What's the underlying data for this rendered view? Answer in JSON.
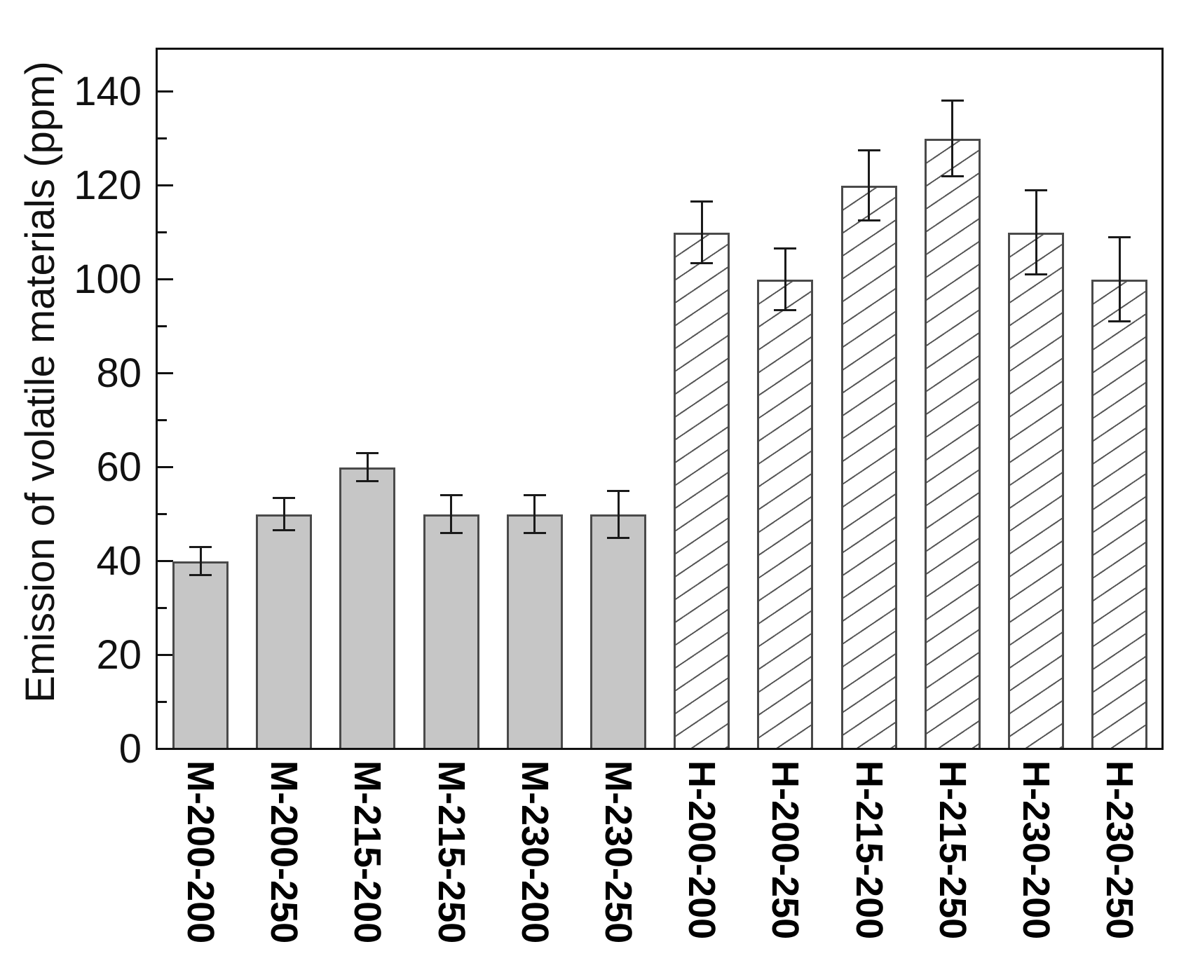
{
  "chart_data": {
    "type": "bar",
    "title": "",
    "xlabel": "",
    "ylabel": "Emission of volatile materials (ppm)",
    "categories": [
      "M-200-200",
      "M-200-250",
      "M-215-200",
      "M-215-250",
      "M-230-200",
      "M-230-250",
      "H-200-200",
      "H-200-250",
      "H-215-200",
      "H-215-250",
      "H-230-200",
      "H-230-250"
    ],
    "values": [
      40,
      50,
      60,
      50,
      50,
      50,
      110,
      100,
      120,
      130,
      110,
      100
    ],
    "error_bars": [
      3,
      3.5,
      3,
      4,
      4,
      5,
      6.5,
      6.5,
      7.5,
      8,
      9,
      9
    ],
    "groups": [
      {
        "prefix": "M",
        "style": "solid",
        "fill": "#c6c6c6",
        "bars": 6
      },
      {
        "prefix": "H",
        "style": "diagonal-hatch",
        "fill": "#ffffff",
        "hatch": "/",
        "bars": 6
      }
    ],
    "ylim": [
      0,
      150
    ],
    "yticks_major": [
      0,
      20,
      40,
      60,
      80,
      100,
      120,
      140
    ],
    "yticks_minor": [
      10,
      30,
      50,
      70,
      90,
      110,
      130
    ],
    "grid": "off",
    "legend": "none",
    "colors": {
      "bar_solid_fill": "#c6c6c6",
      "bar_edge": "#4a4a4a",
      "hatch_line": "#575757",
      "frame": "#111111",
      "error_bar": "#1a1a1a",
      "background": "#ffffff",
      "text": "#111111"
    }
  }
}
